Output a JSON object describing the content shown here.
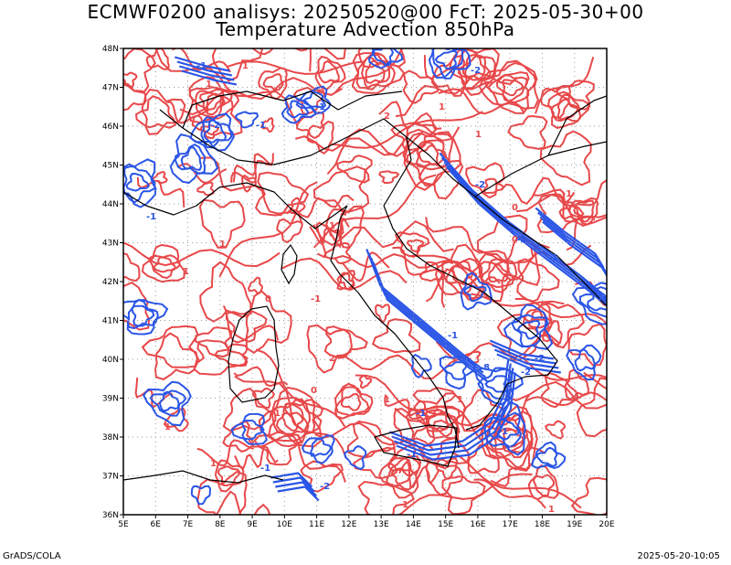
{
  "title_line1": "ECMWF0200 analisys: 20250520@00 FcT: 2025-05-30+00",
  "title_line2": "Temperature Advection 850hPa",
  "footer_left": "GrADS/COLA",
  "footer_right": "2025-05-20-10:05",
  "lon_labels": [
    "5E",
    "6E",
    "7E",
    "8E",
    "9E",
    "10E",
    "11E",
    "12E",
    "13E",
    "14E",
    "15E",
    "16E",
    "17E",
    "18E",
    "19E",
    "20E"
  ],
  "lat_labels": [
    "48N",
    "47N",
    "46N",
    "45N",
    "44N",
    "43N",
    "42N",
    "41N",
    "40N",
    "39N",
    "38N",
    "37N",
    "36N"
  ],
  "colors": {
    "positive": "#e8484a",
    "negative": "#2a55e6",
    "coast": "#000000",
    "grid": "#9a9a9a"
  },
  "contour_labels": {
    "warm": [
      "1",
      "0",
      "1",
      "1",
      "0",
      "-1",
      "1",
      "2",
      "1",
      "1",
      "1",
      "0",
      "1",
      "1",
      "0",
      "-1",
      "1",
      "1",
      "2",
      "1",
      "1",
      "0",
      "1"
    ],
    "cold": [
      "-1",
      "-1",
      "-2",
      "-1",
      "-1",
      "-2",
      "-1",
      "-8",
      "-2",
      "-1",
      "-2",
      "-1",
      "-1",
      "-1",
      "-2",
      "-1",
      "-1",
      "-2",
      "-1"
    ]
  }
}
